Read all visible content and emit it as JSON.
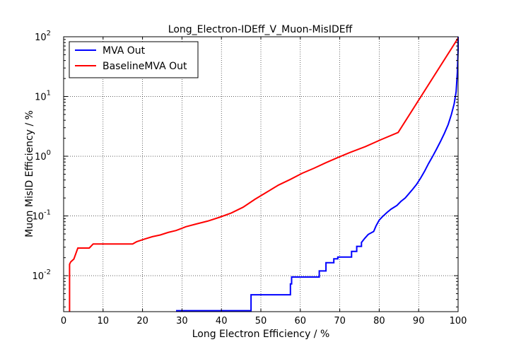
{
  "chart_data": {
    "type": "line",
    "title": "Long_Electron-IDEff_V_Muon-MisIDEff",
    "xlabel": "Long Electron Efficiency / %",
    "ylabel": "Muon MisID Efficiency / %",
    "xlim": [
      0,
      100
    ],
    "ylim": [
      0.0025,
      100
    ],
    "yscale": "log",
    "grid": true,
    "legend_position": "upper-left",
    "x_ticks": [
      "0",
      "10",
      "20",
      "30",
      "40",
      "50",
      "60",
      "70",
      "80",
      "90",
      "100"
    ],
    "y_ticks": [
      {
        "base": "10",
        "exp": "-2",
        "value": 0.01
      },
      {
        "base": "10",
        "exp": "-1",
        "value": 0.1
      },
      {
        "base": "10",
        "exp": "0",
        "value": 1
      },
      {
        "base": "10",
        "exp": "1",
        "value": 10
      },
      {
        "base": "10",
        "exp": "2",
        "value": 100
      }
    ],
    "series": [
      {
        "name": "MVA Out",
        "color": "#0000ff",
        "x": [
          28.5,
          47.5,
          47.5,
          57.5,
          57.5,
          57.8,
          57.8,
          64.8,
          64.8,
          66.5,
          66.5,
          68.5,
          68.5,
          69.5,
          69.5,
          73.0,
          73.0,
          74.3,
          74.3,
          75.5,
          75.5,
          76.3,
          77.2,
          78.6,
          79.2,
          80.0,
          80.8,
          82.0,
          83.0,
          84.5,
          85.5,
          86.6,
          87.5,
          88.5,
          89.5,
          90.5,
          91.5,
          92.5,
          93.5,
          94.5,
          95.5,
          96.5,
          97.5,
          98.3,
          99.0,
          99.5,
          99.8,
          100.0,
          100.0
        ],
        "y": [
          0.0026,
          0.0026,
          0.0048,
          0.0048,
          0.0073,
          0.0073,
          0.0095,
          0.0095,
          0.012,
          0.012,
          0.0165,
          0.0165,
          0.0192,
          0.0192,
          0.0205,
          0.0205,
          0.0255,
          0.0255,
          0.031,
          0.031,
          0.036,
          0.042,
          0.049,
          0.055,
          0.068,
          0.085,
          0.097,
          0.115,
          0.13,
          0.15,
          0.175,
          0.2,
          0.235,
          0.28,
          0.34,
          0.43,
          0.56,
          0.75,
          0.98,
          1.3,
          1.75,
          2.4,
          3.4,
          5.0,
          7.5,
          12,
          25,
          60,
          100
        ]
      },
      {
        "name": "BaselineMVA Out",
        "color": "#ff0000",
        "x": [
          1.5,
          1.5,
          1.8,
          2.6,
          3.6,
          6.5,
          7.5,
          17.5,
          18.5,
          20.5,
          22.5,
          24.5,
          26.5,
          28.5,
          31.0,
          33.5,
          36.5,
          39.5,
          42.5,
          45.5,
          48.5,
          51.5,
          54.5,
          57.5,
          60.5,
          63.5,
          66.5,
          69.5,
          72.5,
          76.5,
          80.5,
          84.8,
          100.0
        ],
        "y": [
          0.0025,
          0.0155,
          0.017,
          0.019,
          0.029,
          0.029,
          0.034,
          0.034,
          0.037,
          0.041,
          0.045,
          0.048,
          0.053,
          0.057,
          0.066,
          0.073,
          0.082,
          0.095,
          0.112,
          0.14,
          0.19,
          0.25,
          0.33,
          0.41,
          0.52,
          0.63,
          0.78,
          0.95,
          1.15,
          1.45,
          1.9,
          2.5,
          95
        ]
      }
    ]
  }
}
